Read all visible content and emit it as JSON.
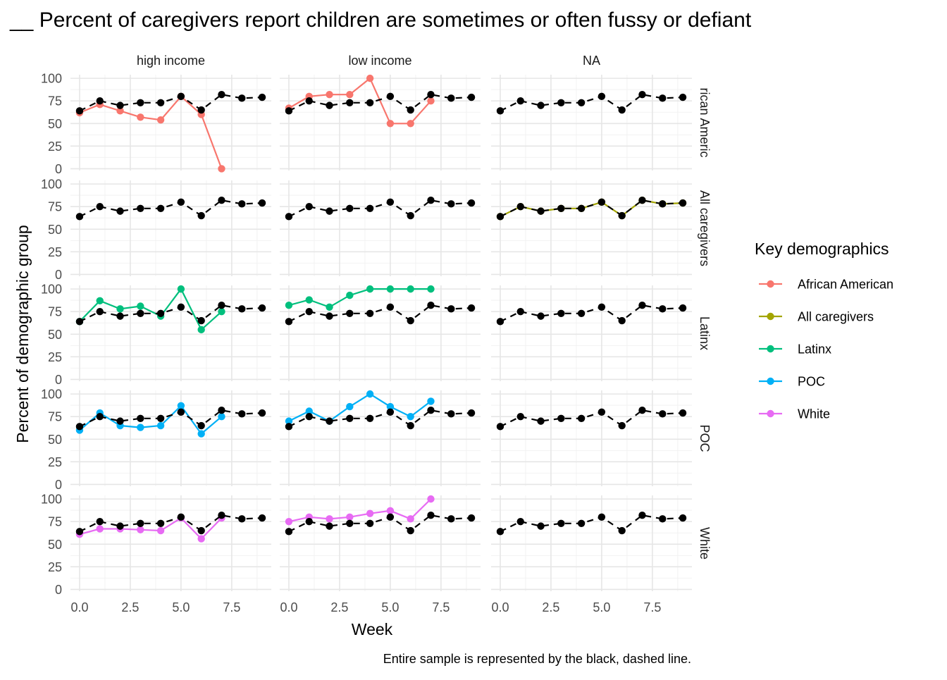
{
  "chart_data": {
    "type": "line",
    "title": "__ Percent of caregivers report children are sometimes or often fussy or defiant",
    "xlabel": "Week",
    "ylabel": "Percent of demographic group",
    "caption": "Entire sample is represented by the black, dashed line.",
    "xlim": [
      -0.45,
      9.45
    ],
    "ylim": [
      -2,
      104
    ],
    "x_ticks": [
      0.0,
      2.5,
      5.0,
      7.5
    ],
    "x_tick_labels": [
      "0.0",
      "2.5",
      "5.0",
      "7.5"
    ],
    "y_ticks": [
      0,
      25,
      50,
      75,
      100
    ],
    "y_tick_labels": [
      "0",
      "25",
      "50",
      "75",
      "100"
    ],
    "grid": true,
    "legend": {
      "title": "Key demographics",
      "position": "right",
      "entries": [
        {
          "label": "African American",
          "color": "#F8766D"
        },
        {
          "label": "All caregivers",
          "color": "#A3A500"
        },
        {
          "label": "Latinx",
          "color": "#00BF7D"
        },
        {
          "label": "POC",
          "color": "#00B0F6"
        },
        {
          "label": "White",
          "color": "#E76BF3"
        }
      ]
    },
    "col_facets": [
      "high income",
      "low income",
      "NA"
    ],
    "row_facets": [
      "African American",
      "All caregivers",
      "Latinx",
      "POC",
      "White"
    ],
    "row_facet_strips": [
      "rican Americ",
      "All caregivers",
      "Latinx",
      "POC",
      "White"
    ],
    "reference": {
      "style": "black dashed",
      "color": "#000000",
      "x": [
        0,
        1,
        2,
        3,
        4,
        5,
        6,
        7,
        8,
        9
      ],
      "y": [
        64,
        75,
        70,
        73,
        73,
        80,
        65,
        82,
        78,
        79
      ]
    },
    "panels": [
      {
        "row": 0,
        "col": 0,
        "group": "African American",
        "x": [
          0,
          1,
          2,
          3,
          4,
          5,
          6,
          7
        ],
        "y": [
          62,
          71,
          64,
          57,
          54,
          80,
          60,
          0
        ]
      },
      {
        "row": 0,
        "col": 1,
        "group": "African American",
        "x": [
          0,
          1,
          2,
          3,
          4,
          5,
          6,
          7
        ],
        "y": [
          67,
          80,
          82,
          82,
          100,
          50,
          50,
          75
        ]
      },
      {
        "row": 1,
        "col": 2,
        "group": "All caregivers",
        "x": [
          0,
          1,
          2,
          3,
          4,
          5,
          6,
          7,
          8,
          9
        ],
        "y": [
          64,
          75,
          70,
          73,
          73,
          80,
          65,
          82,
          78,
          79
        ]
      },
      {
        "row": 2,
        "col": 0,
        "group": "Latinx",
        "x": [
          0,
          1,
          2,
          3,
          4,
          5,
          6,
          7
        ],
        "y": [
          64,
          87,
          78,
          81,
          70,
          100,
          55,
          75
        ]
      },
      {
        "row": 2,
        "col": 1,
        "group": "Latinx",
        "x": [
          0,
          1,
          2,
          3,
          4,
          5,
          6,
          7
        ],
        "y": [
          82,
          88,
          80,
          93,
          100,
          100,
          100,
          100
        ]
      },
      {
        "row": 3,
        "col": 0,
        "group": "POC",
        "x": [
          0,
          1,
          2,
          3,
          4,
          5,
          6,
          7
        ],
        "y": [
          60,
          79,
          65,
          63,
          65,
          87,
          56,
          75
        ]
      },
      {
        "row": 3,
        "col": 1,
        "group": "POC",
        "x": [
          0,
          1,
          2,
          3,
          4,
          5,
          6,
          7
        ],
        "y": [
          70,
          81,
          70,
          86,
          100,
          86,
          75,
          92
        ]
      },
      {
        "row": 4,
        "col": 0,
        "group": "White",
        "x": [
          0,
          1,
          2,
          3,
          4,
          5,
          6,
          7
        ],
        "y": [
          61,
          67,
          67,
          66,
          65,
          79,
          56,
          79
        ]
      },
      {
        "row": 4,
        "col": 1,
        "group": "White",
        "x": [
          0,
          1,
          2,
          3,
          4,
          5,
          6,
          7
        ],
        "y": [
          75,
          80,
          78,
          80,
          84,
          87,
          78,
          100
        ]
      }
    ]
  }
}
